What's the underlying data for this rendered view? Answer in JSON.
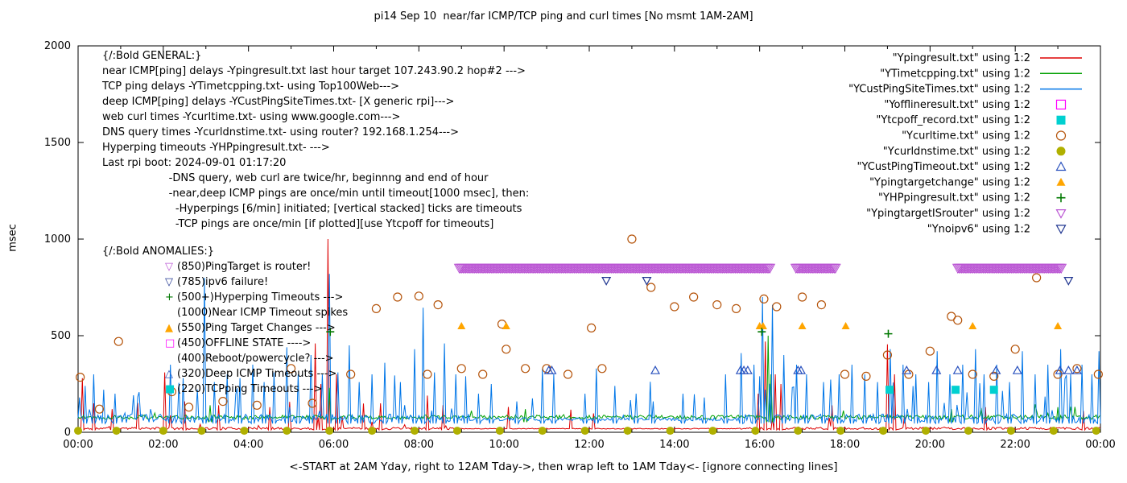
{
  "title": "pi14 Sep 10  near/far ICMP/TCP ping and curl times [No msmt 1AM-2AM]",
  "axes": {
    "ylabel": "msec",
    "xlabel": "<-START at 2AM Yday, right to 12AM Tday->, then wrap left to 1AM Tday<- [ignore connecting lines]",
    "xticks": [
      "00:00",
      "02:00",
      "04:00",
      "06:00",
      "08:00",
      "10:00",
      "12:00",
      "14:00",
      "16:00",
      "18:00",
      "20:00",
      "22:00",
      "00:00"
    ],
    "yticks": [
      0,
      500,
      1000,
      1500,
      2000
    ]
  },
  "legend": [
    {
      "label": "\"Ypingresult.txt\" using 1:2",
      "type": "line",
      "color": "#dd0000"
    },
    {
      "label": "\"YTimetcpping.txt\" using 1:2",
      "type": "line",
      "color": "#00a000"
    },
    {
      "label": "\"YCustPingSiteTimes.txt\" using 1:2",
      "type": "line",
      "color": "#0076e8"
    },
    {
      "label": "\"Yofflineresult.txt\" using 1:2",
      "type": "square-open",
      "color": "#ff00ff"
    },
    {
      "label": "\"Ytcpoff_record.txt\" using 1:2",
      "type": "square-filled",
      "color": "#00d0d0"
    },
    {
      "label": "\"Ycurltime.txt\" using 1:2",
      "type": "circle-open",
      "color": "#b5540b"
    },
    {
      "label": "\"Ycurldnstime.txt\" using 1:2",
      "type": "circle-filled",
      "color": "#b0b000"
    },
    {
      "label": "\"YCustPingTimeout.txt\" using 1:2",
      "type": "triangle-up-open",
      "color": "#2a52be"
    },
    {
      "label": "\"Ypingtargetchange\" using 1:2",
      "type": "triangle-up-filled",
      "color": "#ffa500"
    },
    {
      "label": "\"YHPpingresult.txt\" using 1:2",
      "type": "plus",
      "color": "#007800"
    },
    {
      "label": "\"YpingtargetISrouter\" using 1:2",
      "type": "triangle-down-open",
      "color": "#ba55d3"
    },
    {
      "label": "\"Ynoipv6\" using 1:2",
      "type": "triangle-down-open",
      "color": "#1f3590"
    }
  ],
  "annotations": {
    "general": {
      "header": "{/:Bold GENERAL:}",
      "lines": [
        "near ICMP[ping] delays -Ypingresult.txt last hour target 107.243.90.2 hop#2 --->",
        "TCP ping delays -YTimetcpping.txt- using Top100Web--->",
        "deep ICMP[ping] delays -YCustPingSiteTimes.txt- [X generic rpi]--->",
        "web curl times -Ycurltime.txt- using www.google.com--->",
        "DNS query times -Ycurldnstime.txt- using router? 192.168.1.254--->",
        "Hyperping timeouts -YHPpingresult.txt- --->",
        "Last rpi boot: 2024-09-01 01:17:20",
        "                    -DNS query, web curl are twice/hr, beginnng and end of hour",
        "                    -near,deep ICMP pings are once/min until timeout[1000 msec], then:",
        "                      -Hyperpings [6/min] initiated; [vertical stacked] ticks are timeouts",
        "                      -TCP pings are once/min [if plotted][use Ytcpoff for timeouts]"
      ]
    },
    "anomalies": {
      "header": "{/:Bold ANOMALIES:}",
      "items": [
        {
          "marker": "triangle-down-open",
          "color": "#ba55d3",
          "text": "(850)PingTarget is router!"
        },
        {
          "marker": "triangle-down-open",
          "color": "#1f3590",
          "text": "(785)ipv6 failure!"
        },
        {
          "marker": "plus",
          "color": "#007800",
          "text": "(500+)Hyperping Timeouts --->"
        },
        {
          "marker": "none",
          "color": "",
          "text": "(1000)Near ICMP Timeout spikes"
        },
        {
          "marker": "triangle-up-filled",
          "color": "#ffa500",
          "text": "(550)Ping Target Changes --->"
        },
        {
          "marker": "square-open",
          "color": "#ff00ff",
          "text": "(450)OFFLINE STATE ---->"
        },
        {
          "marker": "none",
          "color": "",
          "text": "(400)Reboot/powercycle? --->"
        },
        {
          "marker": "triangle-up-open",
          "color": "#2a52be",
          "text": "(320)Deep ICMP Timeouts --->"
        },
        {
          "marker": "square-filled",
          "color": "#00d0d0",
          "text": "(220)TCPping Timeouts --->"
        }
      ]
    }
  },
  "chart_data": {
    "type": "line",
    "title": "pi14 Sep 10  near/far ICMP/TCP ping and curl times [No msmt 1AM-2AM]",
    "xlabel": "<-START at 2AM Yday, right to 12AM Tday->, then wrap left to 1AM Tday<- [ignore connecting lines]",
    "ylabel": "msec",
    "xlim": [
      0,
      24
    ],
    "ylim": [
      0,
      2000
    ],
    "x_unit": "hours",
    "grid": false,
    "legend_position": "top-right",
    "line_series": [
      {
        "name": "Ypingresult.txt",
        "color": "#dd0000",
        "baseline": 18,
        "jitter": 12,
        "spike_prob": 0.035,
        "spike_max": 150,
        "seed": 11,
        "calm": [
          [
            9.0,
            15.5
          ]
        ],
        "spikes": [
          [
            0.1,
            280
          ],
          [
            0.35,
            150
          ],
          [
            0.8,
            120
          ],
          [
            2.05,
            310
          ],
          [
            2.5,
            160
          ],
          [
            3.3,
            140
          ],
          [
            4.5,
            130
          ],
          [
            5.55,
            460
          ],
          [
            5.7,
            250
          ],
          [
            5.85,
            1000
          ],
          [
            6.05,
            300
          ],
          [
            7.1,
            150
          ],
          [
            8.2,
            190
          ],
          [
            15.95,
            200
          ],
          [
            16.15,
            470
          ],
          [
            16.35,
            300
          ],
          [
            16.5,
            250
          ],
          [
            19.0,
            455
          ],
          [
            19.15,
            300
          ],
          [
            21.3,
            130
          ],
          [
            23.6,
            110
          ]
        ]
      },
      {
        "name": "YTimetcpping.txt",
        "color": "#00a000",
        "baseline": 75,
        "jitter": 22,
        "spike_prob": 0.02,
        "spike_max": 60,
        "seed": 22,
        "calm": [],
        "spikes": [
          [
            3.1,
            140
          ],
          [
            5.9,
            230
          ],
          [
            10.5,
            120
          ],
          [
            16.2,
            500
          ],
          [
            16.28,
            300
          ],
          [
            20.5,
            120
          ],
          [
            23.0,
            130
          ]
        ]
      },
      {
        "name": "YCustPingSiteTimes.txt",
        "color": "#0076e8",
        "baseline": 65,
        "jitter": 45,
        "spike_prob": 0.1,
        "spike_max": 230,
        "seed": 33,
        "calm": [
          [
            9.2,
            15.5
          ]
        ],
        "spikes": [
          [
            0.15,
            240
          ],
          [
            0.35,
            300
          ],
          [
            0.6,
            220
          ],
          [
            0.85,
            200
          ],
          [
            2.15,
            350
          ],
          [
            2.45,
            280
          ],
          [
            2.95,
            800
          ],
          [
            3.2,
            260
          ],
          [
            3.5,
            300
          ],
          [
            3.8,
            280
          ],
          [
            4.1,
            350
          ],
          [
            4.35,
            260
          ],
          [
            4.6,
            310
          ],
          [
            4.9,
            440
          ],
          [
            5.15,
            300
          ],
          [
            5.45,
            400
          ],
          [
            5.9,
            820
          ],
          [
            6.1,
            310
          ],
          [
            6.35,
            450
          ],
          [
            6.6,
            260
          ],
          [
            6.9,
            300
          ],
          [
            7.2,
            360
          ],
          [
            7.55,
            260
          ],
          [
            7.9,
            430
          ],
          [
            8.1,
            645
          ],
          [
            8.35,
            310
          ],
          [
            8.6,
            460
          ],
          [
            8.85,
            300
          ],
          [
            9.1,
            290
          ],
          [
            9.4,
            200
          ],
          [
            9.7,
            250
          ],
          [
            10.3,
            160
          ],
          [
            10.9,
            330
          ],
          [
            11.15,
            300
          ],
          [
            11.9,
            200
          ],
          [
            12.15,
            330
          ],
          [
            12.6,
            240
          ],
          [
            13.1,
            200
          ],
          [
            13.5,
            160
          ],
          [
            14.2,
            200
          ],
          [
            14.7,
            180
          ],
          [
            15.2,
            300
          ],
          [
            15.55,
            410
          ],
          [
            15.85,
            350
          ],
          [
            16.05,
            700
          ],
          [
            16.3,
            660
          ],
          [
            16.55,
            400
          ],
          [
            16.85,
            350
          ],
          [
            17.1,
            300
          ],
          [
            17.5,
            260
          ],
          [
            17.85,
            300
          ],
          [
            18.15,
            350
          ],
          [
            18.45,
            300
          ],
          [
            18.75,
            260
          ],
          [
            19.05,
            430
          ],
          [
            19.35,
            350
          ],
          [
            19.65,
            300
          ],
          [
            19.95,
            260
          ],
          [
            20.15,
            420
          ],
          [
            20.45,
            300
          ],
          [
            20.75,
            350
          ],
          [
            21.05,
            430
          ],
          [
            21.25,
            300
          ],
          [
            21.55,
            350
          ],
          [
            21.85,
            260
          ],
          [
            22.15,
            420
          ],
          [
            22.45,
            300
          ],
          [
            22.75,
            350
          ],
          [
            23.05,
            430
          ],
          [
            23.3,
            300
          ],
          [
            23.55,
            350
          ],
          [
            23.8,
            300
          ],
          [
            23.97,
            420
          ]
        ]
      }
    ],
    "marker_series": [
      {
        "name": "Yofflineresult.txt",
        "marker": "square-open",
        "color": "#ff00ff",
        "points": []
      },
      {
        "name": "Ytcpoff_record.txt",
        "marker": "square-filled",
        "color": "#00d0d0",
        "points": [
          [
            19.05,
            220
          ],
          [
            20.6,
            220
          ],
          [
            21.5,
            220
          ]
        ]
      },
      {
        "name": "Ycurltime.txt",
        "marker": "circle-open",
        "color": "#b5540b",
        "points": [
          [
            0.05,
            285
          ],
          [
            0.5,
            120
          ],
          [
            0.95,
            470
          ],
          [
            2.2,
            210
          ],
          [
            2.6,
            130
          ],
          [
            3.4,
            160
          ],
          [
            4.2,
            140
          ],
          [
            5.0,
            330
          ],
          [
            5.5,
            150
          ],
          [
            6.4,
            300
          ],
          [
            7.0,
            640
          ],
          [
            7.5,
            700
          ],
          [
            8.0,
            705
          ],
          [
            8.2,
            300
          ],
          [
            8.45,
            660
          ],
          [
            9.0,
            330
          ],
          [
            9.5,
            300
          ],
          [
            9.95,
            560
          ],
          [
            10.05,
            430
          ],
          [
            10.5,
            330
          ],
          [
            11.0,
            330
          ],
          [
            11.5,
            300
          ],
          [
            12.05,
            540
          ],
          [
            12.3,
            330
          ],
          [
            13.0,
            1000
          ],
          [
            13.45,
            750
          ],
          [
            14.0,
            650
          ],
          [
            14.45,
            700
          ],
          [
            15.0,
            660
          ],
          [
            15.45,
            640
          ],
          [
            16.1,
            690
          ],
          [
            16.4,
            650
          ],
          [
            17.0,
            700
          ],
          [
            17.45,
            660
          ],
          [
            18.0,
            300
          ],
          [
            18.5,
            290
          ],
          [
            19.0,
            400
          ],
          [
            19.5,
            300
          ],
          [
            20.0,
            420
          ],
          [
            20.5,
            600
          ],
          [
            20.65,
            580
          ],
          [
            21.0,
            300
          ],
          [
            21.5,
            290
          ],
          [
            22.0,
            430
          ],
          [
            22.5,
            800
          ],
          [
            23.0,
            300
          ],
          [
            23.45,
            330
          ],
          [
            23.95,
            300
          ]
        ]
      },
      {
        "name": "Ycurldnstime.txt",
        "marker": "circle-filled",
        "color": "#b0b000",
        "points": [
          [
            0,
            8
          ],
          [
            0.9,
            8
          ],
          [
            2,
            8
          ],
          [
            2.9,
            8
          ],
          [
            3.9,
            8
          ],
          [
            4.9,
            8
          ],
          [
            5.9,
            8
          ],
          [
            6.9,
            8
          ],
          [
            7.9,
            8
          ],
          [
            8.9,
            8
          ],
          [
            9.9,
            8
          ],
          [
            10.9,
            8
          ],
          [
            11.9,
            8
          ],
          [
            12.9,
            8
          ],
          [
            13.9,
            8
          ],
          [
            14.9,
            8
          ],
          [
            15.9,
            8
          ],
          [
            16.9,
            8
          ],
          [
            17.9,
            8
          ],
          [
            18.9,
            8
          ],
          [
            19.9,
            8
          ],
          [
            20.9,
            8
          ],
          [
            21.9,
            8
          ],
          [
            22.9,
            8
          ],
          [
            23.9,
            8
          ]
        ]
      },
      {
        "name": "YCustPingTimeout.txt",
        "marker": "triangle-up-open",
        "color": "#2a52be",
        "points": [
          [
            11.05,
            320
          ],
          [
            11.12,
            320
          ],
          [
            13.55,
            320
          ],
          [
            15.55,
            320
          ],
          [
            15.63,
            320
          ],
          [
            15.72,
            320
          ],
          [
            16.9,
            320
          ],
          [
            16.97,
            320
          ],
          [
            19.45,
            320
          ],
          [
            20.15,
            320
          ],
          [
            20.65,
            320
          ],
          [
            21.55,
            320
          ],
          [
            22.05,
            320
          ],
          [
            23.05,
            320
          ],
          [
            23.25,
            320
          ],
          [
            23.45,
            320
          ]
        ]
      },
      {
        "name": "Ypingtargetchange",
        "marker": "triangle-up-filled",
        "color": "#ffa500",
        "points": [
          [
            9.0,
            550
          ],
          [
            10.05,
            550
          ],
          [
            16.0,
            550
          ],
          [
            16.08,
            550
          ],
          [
            17.0,
            550
          ],
          [
            18.02,
            550
          ],
          [
            21.0,
            550
          ],
          [
            23.0,
            550
          ]
        ]
      },
      {
        "name": "YHPpingresult.txt",
        "marker": "plus",
        "color": "#007800",
        "points": [
          [
            5.92,
            520
          ],
          [
            16.05,
            520
          ],
          [
            19.02,
            510
          ]
        ]
      },
      {
        "name": "Ynoipv6",
        "marker": "triangle-down-open",
        "color": "#1f3590",
        "points": [
          [
            12.4,
            785
          ],
          [
            13.35,
            785
          ],
          [
            23.25,
            785
          ]
        ]
      }
    ],
    "band_series": {
      "name": "YpingtargetISrouter",
      "marker": "triangle-down-open",
      "color": "#ba55d3",
      "value": 850,
      "density": 0.03,
      "intervals": [
        [
          8.95,
          16.25
        ],
        [
          16.85,
          17.8
        ],
        [
          20.65,
          23.1
        ]
      ]
    }
  }
}
